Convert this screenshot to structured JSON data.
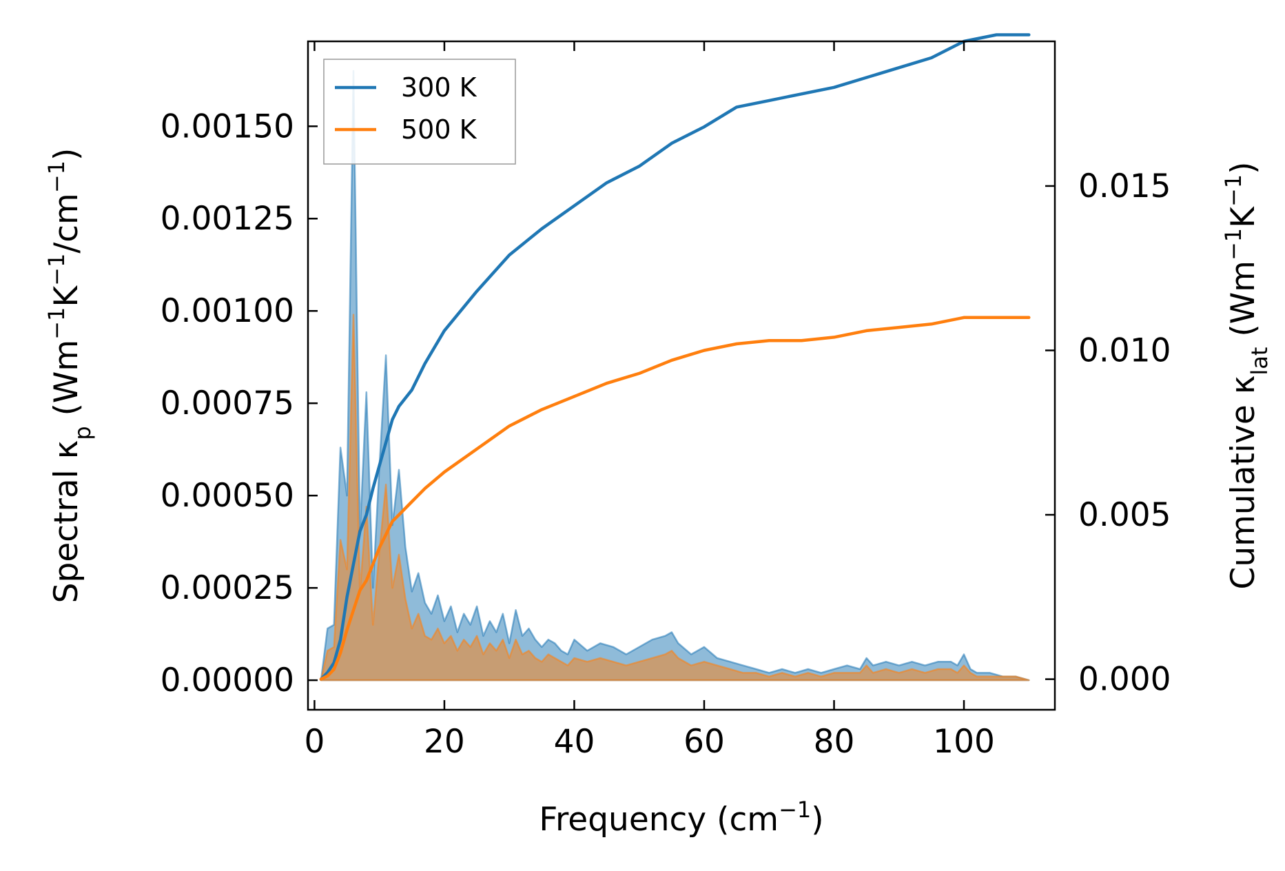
{
  "chart_data": {
    "type": "line",
    "x_axis": {
      "label_main": "Frequency (cm",
      "label_sup": "−1",
      "label_tail": ")",
      "lim": [
        -1,
        114
      ],
      "ticks": [
        0,
        20,
        40,
        60,
        80,
        100
      ],
      "tick_labels": [
        "0",
        "20",
        "40",
        "60",
        "80",
        "100"
      ]
    },
    "y_left": {
      "label_main": "Spectral κ",
      "label_sub": "p",
      "label_rest1": " (Wm",
      "label_sup1": "−1",
      "label_rest2": "K",
      "label_sup2": "−1",
      "label_rest3": "/cm",
      "label_sup3": "−1",
      "label_rest4": ")",
      "lim": [
        -8e-05,
        0.00173
      ],
      "ticks": [
        0,
        0.00025,
        0.0005,
        0.00075,
        0.001,
        0.00125,
        0.0015
      ],
      "tick_labels": [
        "0.00000",
        "0.00025",
        "0.00050",
        "0.00075",
        "0.00100",
        "0.00125",
        "0.00150"
      ]
    },
    "y_right": {
      "label_main": "Cumulative κ",
      "label_sub": "lat",
      "label_rest1": " (Wm",
      "label_sup1": "−1",
      "label_rest2": "K",
      "label_sup2": "−1",
      "label_rest3": ")",
      "lim": [
        -0.00093,
        0.0194
      ],
      "ticks": [
        0,
        0.005,
        0.01,
        0.015
      ],
      "tick_labels": [
        "0.000",
        "0.005",
        "0.010",
        "0.015"
      ]
    },
    "legend": {
      "location": "upper-left",
      "entries": [
        "300 K",
        "500 K"
      ]
    },
    "series": [
      {
        "name": "300 K",
        "color": "#1f77b4",
        "cumulative": {
          "x": [
            1,
            2,
            3,
            4,
            5,
            6,
            7,
            8,
            9,
            10,
            11,
            12,
            13,
            15,
            17,
            20,
            25,
            30,
            35,
            40,
            45,
            50,
            55,
            60,
            65,
            70,
            75,
            80,
            85,
            90,
            95,
            100,
            105,
            110
          ],
          "y": [
            0,
            0.0002,
            0.0005,
            0.0012,
            0.0025,
            0.0035,
            0.0045,
            0.005,
            0.0058,
            0.0065,
            0.0072,
            0.0079,
            0.0083,
            0.0088,
            0.0096,
            0.0106,
            0.0118,
            0.0129,
            0.0137,
            0.0144,
            0.0151,
            0.0156,
            0.0163,
            0.0168,
            0.0174,
            0.0176,
            0.0178,
            0.018,
            0.0183,
            0.0186,
            0.0189,
            0.0194,
            0.0196,
            0.0196
          ]
        },
        "spectral": {
          "x": [
            1,
            2,
            3,
            4,
            5,
            6,
            7,
            8,
            9,
            10,
            11,
            12,
            13,
            14,
            15,
            16,
            17,
            18,
            19,
            20,
            21,
            22,
            23,
            24,
            25,
            26,
            27,
            28,
            29,
            30,
            31,
            32,
            33,
            34,
            35,
            36,
            37,
            38,
            39,
            40,
            42,
            44,
            46,
            48,
            50,
            52,
            54,
            55,
            56,
            58,
            60,
            62,
            64,
            66,
            68,
            70,
            72,
            74,
            76,
            78,
            80,
            82,
            84,
            85,
            86,
            88,
            90,
            92,
            94,
            96,
            98,
            99,
            100,
            101,
            102,
            104,
            106,
            108,
            110
          ],
          "y": [
            0.0,
            0.00014,
            0.00015,
            0.00063,
            0.0005,
            0.00165,
            0.0004,
            0.00078,
            0.00025,
            0.00058,
            0.00088,
            0.00042,
            0.00057,
            0.00036,
            0.00024,
            0.00029,
            0.00021,
            0.00018,
            0.00023,
            0.00016,
            0.0002,
            0.00013,
            0.00018,
            0.00015,
            0.0002,
            0.00012,
            0.00016,
            0.00013,
            0.00018,
            0.0001,
            0.00019,
            0.00012,
            0.00014,
            0.00011,
            9e-05,
            0.00011,
            0.0001,
            8e-05,
            7e-05,
            0.00011,
            8e-05,
            0.0001,
            9e-05,
            7e-05,
            9e-05,
            0.00011,
            0.00012,
            0.00013,
            0.0001,
            7e-05,
            9e-05,
            6e-05,
            5e-05,
            4e-05,
            3e-05,
            2e-05,
            3e-05,
            2e-05,
            3e-05,
            2e-05,
            3e-05,
            4e-05,
            3e-05,
            6e-05,
            4e-05,
            5e-05,
            4e-05,
            5e-05,
            4e-05,
            5e-05,
            5e-05,
            4e-05,
            7e-05,
            3e-05,
            2e-05,
            2e-05,
            1e-05,
            1e-05,
            0.0
          ]
        }
      },
      {
        "name": "500 K",
        "color": "#ff7f0e",
        "cumulative": {
          "x": [
            1,
            2,
            3,
            4,
            5,
            6,
            7,
            8,
            9,
            10,
            11,
            12,
            13,
            15,
            17,
            20,
            25,
            30,
            35,
            40,
            45,
            50,
            55,
            60,
            65,
            70,
            75,
            80,
            85,
            90,
            95,
            100,
            105,
            110
          ],
          "y": [
            0,
            0.0001,
            0.0003,
            0.0008,
            0.0015,
            0.0021,
            0.0027,
            0.003,
            0.0035,
            0.004,
            0.0044,
            0.0048,
            0.005,
            0.0054,
            0.0058,
            0.0063,
            0.007,
            0.0077,
            0.0082,
            0.0086,
            0.009,
            0.0093,
            0.0097,
            0.01,
            0.0102,
            0.0103,
            0.0103,
            0.0104,
            0.0106,
            0.0107,
            0.0108,
            0.011,
            0.011,
            0.011
          ]
        },
        "spectral": {
          "x": [
            1,
            2,
            3,
            4,
            5,
            6,
            7,
            8,
            9,
            10,
            11,
            12,
            13,
            14,
            15,
            16,
            17,
            18,
            19,
            20,
            21,
            22,
            23,
            24,
            25,
            26,
            27,
            28,
            29,
            30,
            31,
            32,
            33,
            34,
            35,
            36,
            37,
            38,
            39,
            40,
            42,
            44,
            46,
            48,
            50,
            52,
            54,
            55,
            56,
            58,
            60,
            62,
            64,
            66,
            68,
            70,
            72,
            74,
            76,
            78,
            80,
            82,
            84,
            85,
            86,
            88,
            90,
            92,
            94,
            96,
            98,
            99,
            100,
            101,
            102,
            104,
            106,
            108,
            110
          ],
          "y": [
            0.0,
            8e-05,
            9e-05,
            0.00038,
            0.0003,
            0.00099,
            0.00024,
            0.00047,
            0.00015,
            0.00035,
            0.00053,
            0.00025,
            0.00034,
            0.00022,
            0.00014,
            0.00018,
            0.00012,
            0.00011,
            0.00014,
            0.0001,
            0.00012,
            8e-05,
            0.00011,
            9e-05,
            0.00012,
            7e-05,
            0.0001,
            8e-05,
            0.00011,
            6e-05,
            0.00011,
            7e-05,
            8e-05,
            6e-05,
            5e-05,
            7e-05,
            6e-05,
            5e-05,
            4e-05,
            6e-05,
            5e-05,
            6e-05,
            5e-05,
            4e-05,
            5e-05,
            6e-05,
            7e-05,
            8e-05,
            6e-05,
            4e-05,
            5e-05,
            4e-05,
            3e-05,
            2e-05,
            2e-05,
            1e-05,
            2e-05,
            1e-05,
            2e-05,
            1e-05,
            2e-05,
            2e-05,
            2e-05,
            4e-05,
            2e-05,
            3e-05,
            2e-05,
            3e-05,
            2e-05,
            3e-05,
            3e-05,
            2e-05,
            4e-05,
            2e-05,
            1e-05,
            1e-05,
            1e-05,
            1e-05,
            0.0
          ]
        }
      }
    ]
  }
}
